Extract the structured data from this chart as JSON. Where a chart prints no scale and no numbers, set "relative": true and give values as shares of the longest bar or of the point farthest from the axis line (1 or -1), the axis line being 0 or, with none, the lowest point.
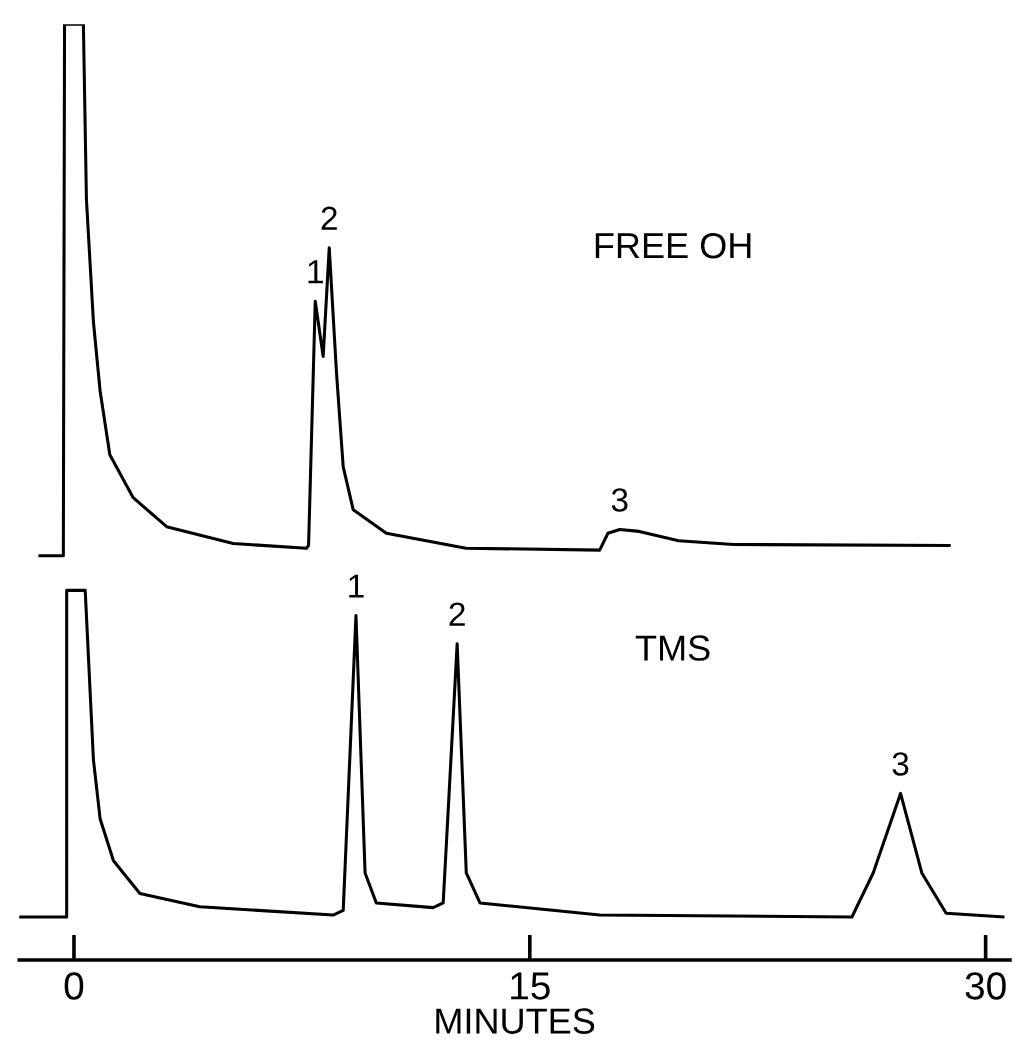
{
  "chart_data": {
    "type": "line",
    "relative": true,
    "xlabel": "MINUTES",
    "xlim": [
      -1.8,
      30.8
    ],
    "xticks": [
      0,
      15,
      30
    ],
    "tick_labels": "x",
    "grid": false,
    "marker": "none",
    "line_style": "solid",
    "annotations": [
      "FREE OH",
      "TMS",
      {
        "text": "1",
        "x": 7.94,
        "y": 0.704
      },
      {
        "text": "2",
        "x": 8.4,
        "y": 0.761
      },
      {
        "text": "3",
        "x": 17.96,
        "y": 0.46
      },
      {
        "text": "1",
        "x": 9.28,
        "y": 0.368
      },
      {
        "text": "2",
        "x": 12.61,
        "y": 0.338
      },
      {
        "text": "3",
        "x": 27.2,
        "y": 0.178
      }
    ],
    "series": [
      {
        "color": "#000000",
        "x": [
          -1.12,
          -0.35,
          -0.31,
          0.31,
          0.41,
          0.64,
          0.86,
          1.18,
          1.95,
          3.05,
          5.24,
          7.65,
          7.72,
          7.94,
          8.2,
          8.4,
          8.64,
          8.86,
          9.19,
          10.28,
          12.9,
          17.3,
          17.57,
          17.96,
          18.6,
          19.9,
          21.7,
          28.8
        ],
        "values": [
          0.432,
          0.432,
          1,
          1,
          0.813,
          0.682,
          0.608,
          0.54,
          0.494,
          0.463,
          0.445,
          0.44,
          0.443,
          0.704,
          0.645,
          0.761,
          0.627,
          0.527,
          0.481,
          0.456,
          0.44,
          0.438,
          0.456,
          0.46,
          0.458,
          0.448,
          0.444,
          0.443
        ]
      },
      {
        "color": "#000000",
        "x": [
          -1.78,
          -0.24,
          -0.24,
          0.37,
          0.64,
          0.86,
          1.3,
          2.17,
          4.14,
          8.53,
          8.86,
          9.28,
          9.58,
          9.95,
          11.82,
          12.15,
          12.61,
          12.91,
          13.36,
          17.3,
          25.6,
          26.3,
          27.2,
          27.9,
          28.7,
          30.57
        ],
        "values": [
          0.046,
          0.046,
          0.395,
          0.395,
          0.214,
          0.151,
          0.106,
          0.071,
          0.057,
          0.048,
          0.053,
          0.368,
          0.093,
          0.061,
          0.056,
          0.061,
          0.338,
          0.093,
          0.061,
          0.048,
          0.046,
          0.093,
          0.178,
          0.093,
          0.05,
          0.046
        ]
      }
    ]
  }
}
